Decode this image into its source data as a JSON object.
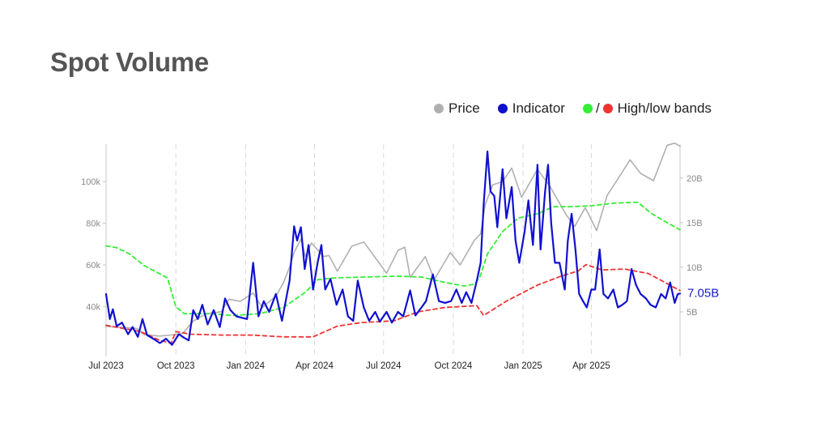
{
  "title": "Spot Volume",
  "legend": [
    {
      "label": "Price",
      "color": "#b0b0b0"
    },
    {
      "label": "Indicator",
      "color": "#1010d0"
    },
    {
      "label": "High/low bands",
      "colors": [
        "#33ee33",
        "#ee3333"
      ],
      "separator": "/"
    }
  ],
  "chart_data": {
    "type": "line",
    "title": "Spot Volume",
    "x_domain": [
      "2023-07-01",
      "2025-07-27"
    ],
    "x_ticks": [
      {
        "date": "2023-07-01",
        "label": "Jul 2023"
      },
      {
        "date": "2023-10-01",
        "label": "Oct 2023"
      },
      {
        "date": "2024-01-01",
        "label": "Jan 2024"
      },
      {
        "date": "2024-04-01",
        "label": "Apr 2024"
      },
      {
        "date": "2024-07-01",
        "label": "Jul 2024"
      },
      {
        "date": "2024-10-01",
        "label": "Oct 2024"
      },
      {
        "date": "2025-01-01",
        "label": "Jan 2025"
      },
      {
        "date": "2025-04-01",
        "label": "Apr 2025"
      }
    ],
    "y_left": {
      "range": [
        16000,
        118000
      ],
      "ticks": [
        {
          "v": 40000,
          "label": "40k"
        },
        {
          "v": 60000,
          "label": "60k"
        },
        {
          "v": 80000,
          "label": "80k"
        },
        {
          "v": 100000,
          "label": "100k"
        }
      ]
    },
    "y_right": {
      "range": [
        0,
        23800000000
      ],
      "ticks": [
        {
          "v": 5000000000,
          "label": "5B"
        },
        {
          "v": 10000000000,
          "label": "10B"
        },
        {
          "v": 15000000000,
          "label": "15B"
        },
        {
          "v": 20000000000,
          "label": "20B"
        }
      ]
    },
    "grid": {
      "vertical": true,
      "style": "dashed"
    },
    "last_value_label": "7.05B",
    "series": [
      {
        "name": "Price",
        "axis": "left",
        "color": "#b0b0b0",
        "dash": false,
        "points": [
          [
            "2023-07-01",
            30500
          ],
          [
            "2023-07-20",
            30000
          ],
          [
            "2023-08-10",
            29500
          ],
          [
            "2023-08-20",
            26500
          ],
          [
            "2023-09-10",
            25800
          ],
          [
            "2023-09-25",
            26300
          ],
          [
            "2023-10-10",
            27000
          ],
          [
            "2023-10-24",
            33000
          ],
          [
            "2023-11-10",
            36500
          ],
          [
            "2023-11-30",
            37500
          ],
          [
            "2023-12-10",
            43500
          ],
          [
            "2023-12-25",
            42500
          ],
          [
            "2024-01-11",
            46500
          ],
          [
            "2024-01-23",
            39500
          ],
          [
            "2024-02-10",
            45000
          ],
          [
            "2024-02-20",
            51500
          ],
          [
            "2024-02-28",
            59000
          ],
          [
            "2024-03-05",
            66000
          ],
          [
            "2024-03-14",
            72500
          ],
          [
            "2024-03-20",
            64000
          ],
          [
            "2024-03-28",
            70500
          ],
          [
            "2024-04-13",
            64000
          ],
          [
            "2024-04-20",
            64500
          ],
          [
            "2024-05-01",
            57000
          ],
          [
            "2024-05-20",
            69000
          ],
          [
            "2024-06-05",
            71000
          ],
          [
            "2024-06-25",
            61000
          ],
          [
            "2024-07-05",
            56000
          ],
          [
            "2024-07-20",
            67000
          ],
          [
            "2024-07-29",
            68500
          ],
          [
            "2024-08-05",
            54000
          ],
          [
            "2024-08-25",
            64000
          ],
          [
            "2024-09-06",
            53000
          ],
          [
            "2024-09-27",
            66000
          ],
          [
            "2024-10-10",
            60000
          ],
          [
            "2024-10-29",
            72000
          ],
          [
            "2024-11-06",
            75000
          ],
          [
            "2024-11-12",
            89000
          ],
          [
            "2024-11-22",
            98500
          ],
          [
            "2024-12-05",
            100000
          ],
          [
            "2024-12-17",
            106500
          ],
          [
            "2024-12-30",
            92500
          ],
          [
            "2025-01-20",
            106000
          ],
          [
            "2025-02-05",
            98000
          ],
          [
            "2025-02-27",
            84000
          ],
          [
            "2025-03-10",
            78500
          ],
          [
            "2025-03-24",
            87500
          ],
          [
            "2025-04-08",
            76500
          ],
          [
            "2025-04-22",
            93500
          ],
          [
            "2025-05-10",
            103500
          ],
          [
            "2025-05-22",
            110500
          ],
          [
            "2025-06-05",
            104000
          ],
          [
            "2025-06-22",
            100500
          ],
          [
            "2025-07-10",
            117500
          ],
          [
            "2025-07-20",
            118500
          ],
          [
            "2025-07-27",
            117000
          ]
        ]
      },
      {
        "name": "Indicator",
        "axis": "right",
        "color": "#1010d0",
        "dash": false,
        "points": [
          [
            "2023-07-01",
            7000000000
          ],
          [
            "2023-07-06",
            4200000000
          ],
          [
            "2023-07-10",
            5300000000
          ],
          [
            "2023-07-15",
            3400000000
          ],
          [
            "2023-07-22",
            3800000000
          ],
          [
            "2023-07-30",
            2500000000
          ],
          [
            "2023-08-05",
            3300000000
          ],
          [
            "2023-08-12",
            2200000000
          ],
          [
            "2023-08-18",
            4200000000
          ],
          [
            "2023-08-24",
            2400000000
          ],
          [
            "2023-09-01",
            2000000000
          ],
          [
            "2023-09-10",
            1500000000
          ],
          [
            "2023-09-18",
            2000000000
          ],
          [
            "2023-09-26",
            1300000000
          ],
          [
            "2023-10-05",
            2500000000
          ],
          [
            "2023-10-12",
            2100000000
          ],
          [
            "2023-10-18",
            1800000000
          ],
          [
            "2023-10-24",
            5200000000
          ],
          [
            "2023-10-30",
            4200000000
          ],
          [
            "2023-11-05",
            5800000000
          ],
          [
            "2023-11-12",
            3600000000
          ],
          [
            "2023-11-20",
            5200000000
          ],
          [
            "2023-11-28",
            3300000000
          ],
          [
            "2023-12-05",
            6500000000
          ],
          [
            "2023-12-12",
            5200000000
          ],
          [
            "2023-12-20",
            4500000000
          ],
          [
            "2024-01-03",
            4200000000
          ],
          [
            "2024-01-11",
            10500000000
          ],
          [
            "2024-01-18",
            4500000000
          ],
          [
            "2024-01-25",
            6200000000
          ],
          [
            "2024-02-01",
            5000000000
          ],
          [
            "2024-02-10",
            7000000000
          ],
          [
            "2024-02-18",
            4000000000
          ],
          [
            "2024-02-28",
            8500000000
          ],
          [
            "2024-03-05",
            14600000000
          ],
          [
            "2024-03-09",
            13000000000
          ],
          [
            "2024-03-14",
            14500000000
          ],
          [
            "2024-03-19",
            9800000000
          ],
          [
            "2024-03-24",
            12500000000
          ],
          [
            "2024-03-30",
            7500000000
          ],
          [
            "2024-04-05",
            10500000000
          ],
          [
            "2024-04-10",
            12500000000
          ],
          [
            "2024-04-15",
            7500000000
          ],
          [
            "2024-04-22",
            8700000000
          ],
          [
            "2024-04-30",
            5800000000
          ],
          [
            "2024-05-08",
            7500000000
          ],
          [
            "2024-05-15",
            4500000000
          ],
          [
            "2024-05-22",
            4000000000
          ],
          [
            "2024-05-28",
            8500000000
          ],
          [
            "2024-06-05",
            5500000000
          ],
          [
            "2024-06-12",
            4000000000
          ],
          [
            "2024-06-20",
            5000000000
          ],
          [
            "2024-06-26",
            3900000000
          ],
          [
            "2024-07-05",
            5000000000
          ],
          [
            "2024-07-12",
            3800000000
          ],
          [
            "2024-07-20",
            5000000000
          ],
          [
            "2024-07-27",
            4500000000
          ],
          [
            "2024-08-05",
            7400000000
          ],
          [
            "2024-08-12",
            4600000000
          ],
          [
            "2024-08-20",
            5500000000
          ],
          [
            "2024-08-26",
            6200000000
          ],
          [
            "2024-09-04",
            9200000000
          ],
          [
            "2024-09-12",
            6200000000
          ],
          [
            "2024-09-20",
            6000000000
          ],
          [
            "2024-09-28",
            6200000000
          ],
          [
            "2024-10-05",
            7500000000
          ],
          [
            "2024-10-12",
            6000000000
          ],
          [
            "2024-10-18",
            7200000000
          ],
          [
            "2024-10-25",
            6000000000
          ],
          [
            "2024-11-01",
            8500000000
          ],
          [
            "2024-11-06",
            10500000000
          ],
          [
            "2024-11-10",
            17000000000
          ],
          [
            "2024-11-15",
            23000000000
          ],
          [
            "2024-11-19",
            18500000000
          ],
          [
            "2024-11-24",
            18000000000
          ],
          [
            "2024-11-28",
            14500000000
          ],
          [
            "2024-12-05",
            21000000000
          ],
          [
            "2024-12-10",
            15500000000
          ],
          [
            "2024-12-17",
            19000000000
          ],
          [
            "2024-12-22",
            13000000000
          ],
          [
            "2024-12-27",
            10500000000
          ],
          [
            "2025-01-03",
            14000000000
          ],
          [
            "2025-01-08",
            17500000000
          ],
          [
            "2025-01-14",
            12500000000
          ],
          [
            "2025-01-20",
            21500000000
          ],
          [
            "2025-01-24",
            12000000000
          ],
          [
            "2025-01-30",
            18500000000
          ],
          [
            "2025-02-03",
            21500000000
          ],
          [
            "2025-02-07",
            15000000000
          ],
          [
            "2025-02-12",
            10500000000
          ],
          [
            "2025-02-18",
            10500000000
          ],
          [
            "2025-02-25",
            7500000000
          ],
          [
            "2025-03-01",
            13000000000
          ],
          [
            "2025-03-06",
            16000000000
          ],
          [
            "2025-03-11",
            12000000000
          ],
          [
            "2025-03-16",
            7000000000
          ],
          [
            "2025-03-21",
            6200000000
          ],
          [
            "2025-03-26",
            5500000000
          ],
          [
            "2025-04-01",
            7500000000
          ],
          [
            "2025-04-06",
            7500000000
          ],
          [
            "2025-04-12",
            12000000000
          ],
          [
            "2025-04-17",
            7000000000
          ],
          [
            "2025-04-23",
            6500000000
          ],
          [
            "2025-04-30",
            7500000000
          ],
          [
            "2025-05-06",
            5500000000
          ],
          [
            "2025-05-12",
            5800000000
          ],
          [
            "2025-05-18",
            6200000000
          ],
          [
            "2025-05-24",
            9800000000
          ],
          [
            "2025-05-30",
            8000000000
          ],
          [
            "2025-06-05",
            7000000000
          ],
          [
            "2025-06-12",
            6500000000
          ],
          [
            "2025-06-18",
            5800000000
          ],
          [
            "2025-06-25",
            5500000000
          ],
          [
            "2025-07-02",
            7000000000
          ],
          [
            "2025-07-08",
            6500000000
          ],
          [
            "2025-07-14",
            8300000000
          ],
          [
            "2025-07-20",
            6000000000
          ],
          [
            "2025-07-24",
            7000000000
          ],
          [
            "2025-07-27",
            7050000000
          ]
        ]
      },
      {
        "name": "High band",
        "axis": "right",
        "color": "#33ee33",
        "dash": true,
        "points": [
          [
            "2023-07-01",
            12400000000
          ],
          [
            "2023-07-15",
            12200000000
          ],
          [
            "2023-08-01",
            11500000000
          ],
          [
            "2023-08-20",
            10200000000
          ],
          [
            "2023-09-20",
            8800000000
          ],
          [
            "2023-10-01",
            5600000000
          ],
          [
            "2023-10-12",
            4800000000
          ],
          [
            "2023-11-15",
            4800000000
          ],
          [
            "2023-12-15",
            4600000000
          ],
          [
            "2024-01-20",
            4800000000
          ],
          [
            "2024-02-20",
            5500000000
          ],
          [
            "2024-03-20",
            7200000000
          ],
          [
            "2024-04-05",
            8600000000
          ],
          [
            "2024-04-25",
            8800000000
          ],
          [
            "2024-06-05",
            8900000000
          ],
          [
            "2024-07-20",
            9000000000
          ],
          [
            "2024-08-20",
            8900000000
          ],
          [
            "2024-09-20",
            8300000000
          ],
          [
            "2024-10-15",
            7900000000
          ],
          [
            "2024-10-29",
            8100000000
          ],
          [
            "2024-11-05",
            8900000000
          ],
          [
            "2024-11-15",
            11500000000
          ],
          [
            "2024-12-05",
            14000000000
          ],
          [
            "2024-12-25",
            15500000000
          ],
          [
            "2025-01-20",
            16000000000
          ],
          [
            "2025-02-10",
            16800000000
          ],
          [
            "2025-03-05",
            16800000000
          ],
          [
            "2025-04-01",
            16900000000
          ],
          [
            "2025-05-01",
            17200000000
          ],
          [
            "2025-06-01",
            17300000000
          ],
          [
            "2025-06-20",
            16000000000
          ],
          [
            "2025-07-10",
            15000000000
          ],
          [
            "2025-07-27",
            14200000000
          ]
        ]
      },
      {
        "name": "Low band",
        "axis": "right",
        "color": "#ee3333",
        "dash": true,
        "points": [
          [
            "2023-07-01",
            3500000000
          ],
          [
            "2023-07-20",
            3200000000
          ],
          [
            "2023-08-15",
            2800000000
          ],
          [
            "2023-09-10",
            1800000000
          ],
          [
            "2023-09-25",
            1500000000
          ],
          [
            "2023-10-01",
            2800000000
          ],
          [
            "2023-10-20",
            2500000000
          ],
          [
            "2023-12-01",
            2400000000
          ],
          [
            "2024-01-10",
            2400000000
          ],
          [
            "2024-02-20",
            2200000000
          ],
          [
            "2024-03-30",
            2200000000
          ],
          [
            "2024-05-01",
            3400000000
          ],
          [
            "2024-06-01",
            3800000000
          ],
          [
            "2024-07-15",
            4000000000
          ],
          [
            "2024-08-15",
            5000000000
          ],
          [
            "2024-09-20",
            5500000000
          ],
          [
            "2024-11-01",
            5700000000
          ],
          [
            "2024-11-10",
            4600000000
          ],
          [
            "2024-12-10",
            6200000000
          ],
          [
            "2025-01-20",
            8000000000
          ],
          [
            "2025-02-20",
            9000000000
          ],
          [
            "2025-03-15",
            9600000000
          ],
          [
            "2025-03-25",
            10300000000
          ],
          [
            "2025-04-15",
            9700000000
          ],
          [
            "2025-05-15",
            9800000000
          ],
          [
            "2025-06-15",
            9300000000
          ],
          [
            "2025-07-05",
            8400000000
          ],
          [
            "2025-07-20",
            7700000000
          ],
          [
            "2025-07-27",
            7400000000
          ]
        ]
      }
    ]
  }
}
